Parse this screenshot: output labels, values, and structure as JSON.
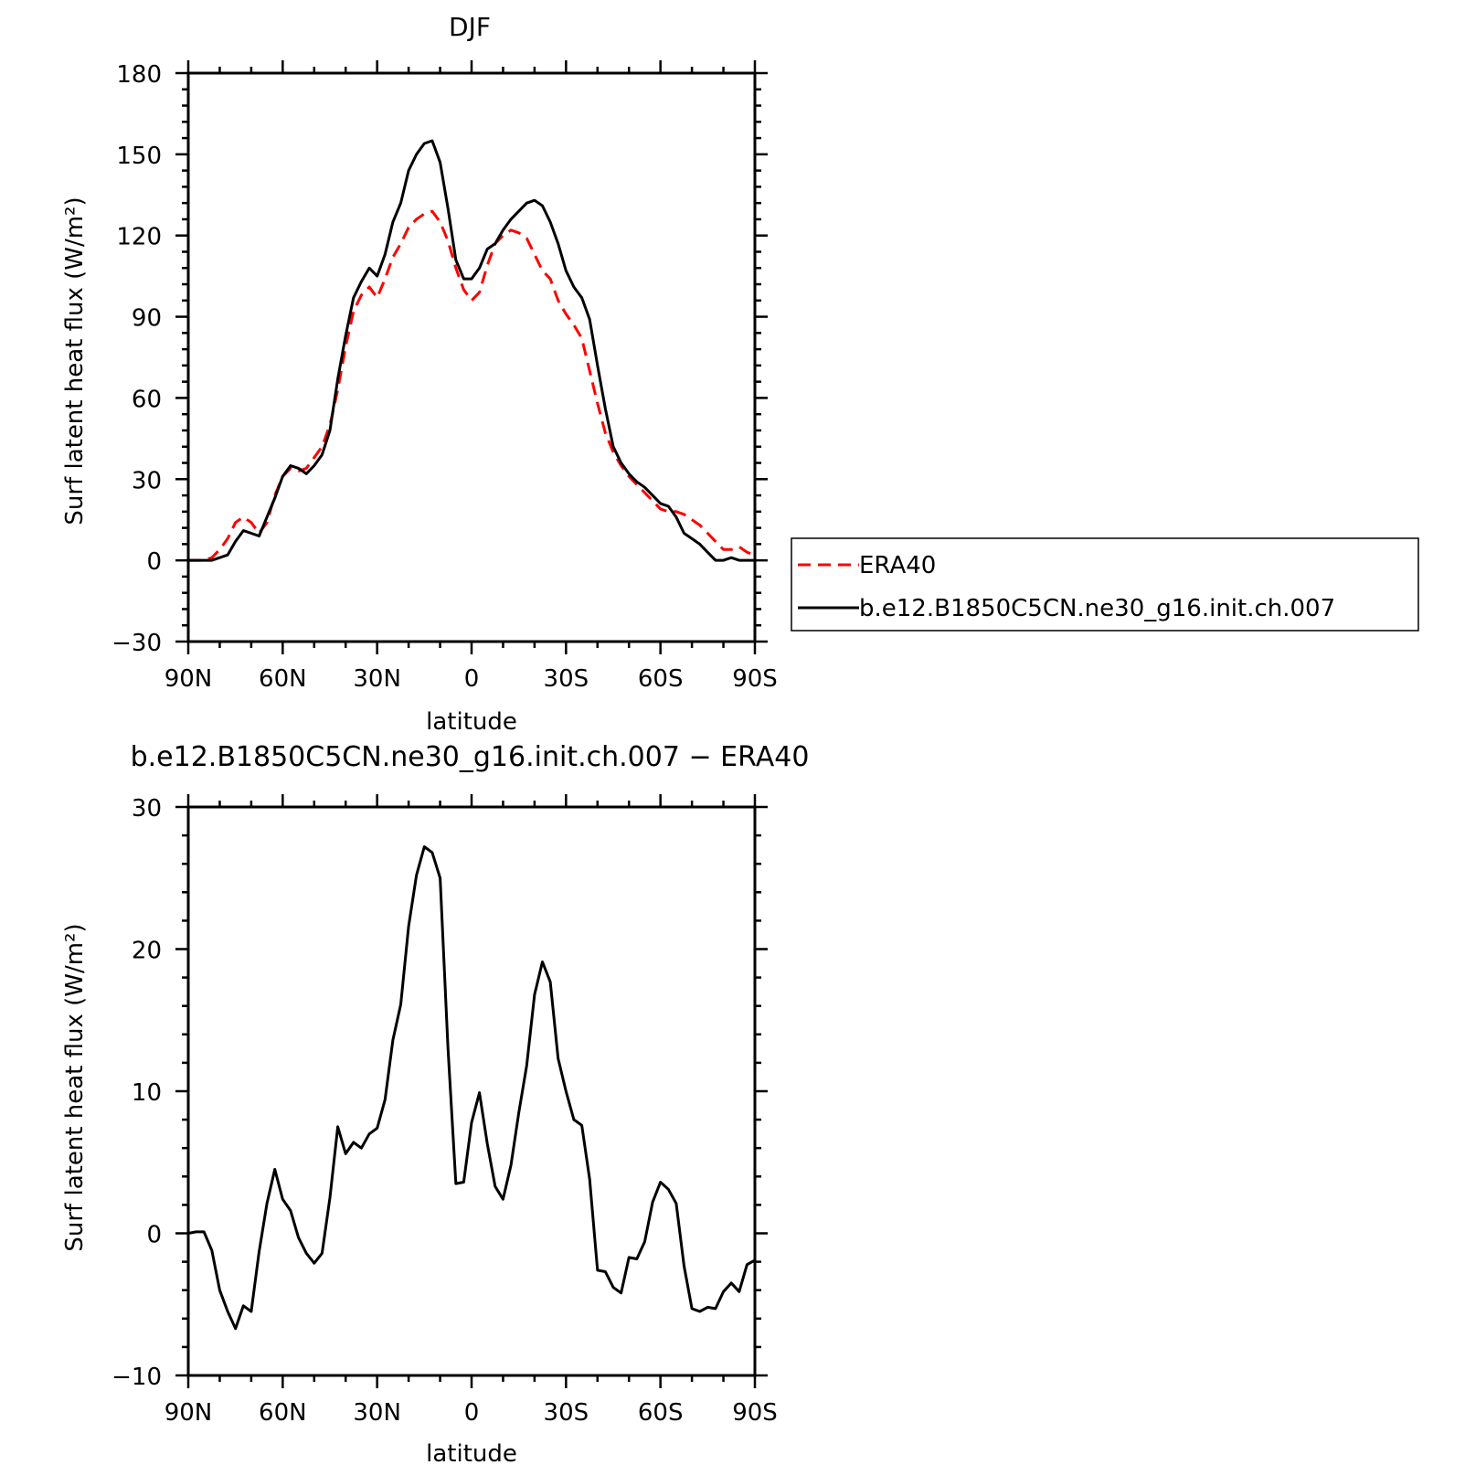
{
  "chart_data": [
    {
      "type": "line",
      "title": "DJF",
      "xlabel": "latitude",
      "ylabel": "Surf latent heat flux (W/m²)",
      "xlim": [
        90,
        -90
      ],
      "ylim": [
        -30,
        180
      ],
      "xticks": [
        90,
        60,
        30,
        0,
        -30,
        -60,
        -90
      ],
      "xtick_labels": [
        "90N",
        "60N",
        "30N",
        "0",
        "30S",
        "60S",
        "90S"
      ],
      "yticks": [
        -30,
        0,
        30,
        60,
        90,
        120,
        150,
        180
      ],
      "ytick_labels": [
        "−30",
        "0",
        "30",
        "60",
        "90",
        "120",
        "150",
        "180"
      ],
      "legend_position": "right",
      "series": [
        {
          "name": "ERA40",
          "color": "#ff0000",
          "dash": "dashed",
          "x": [
            90,
            87.5,
            85,
            82.5,
            80,
            77.5,
            75,
            72.5,
            70,
            67.5,
            65,
            62.5,
            60,
            57.5,
            55,
            52.5,
            50,
            47.5,
            45,
            42.5,
            40,
            37.5,
            35,
            32.5,
            30,
            27.5,
            25,
            22.5,
            20,
            17.5,
            15,
            12.5,
            10,
            7.5,
            5,
            2.5,
            0,
            -2.5,
            -5,
            -7.5,
            -10,
            -12.5,
            -15,
            -17.5,
            -20,
            -22.5,
            -25,
            -27.5,
            -30,
            -32.5,
            -35,
            -37.5,
            -40,
            -42.5,
            -45,
            -47.5,
            -50,
            -52.5,
            -55,
            -57.5,
            -60,
            -62.5,
            -65,
            -67.5,
            -70,
            -72.5,
            -75,
            -77.5,
            -80,
            -82.5,
            -85,
            -87.5,
            -90
          ],
          "y": [
            0,
            0,
            0,
            1,
            4,
            8,
            14,
            16,
            14,
            10,
            14,
            24,
            31,
            34,
            33,
            34,
            38,
            42,
            50,
            63,
            79,
            92,
            98,
            101,
            97,
            104,
            112,
            117,
            123,
            126,
            128,
            129,
            125,
            118,
            108,
            100,
            96,
            99,
            109,
            117,
            120,
            122,
            121,
            119,
            113,
            107,
            104,
            96,
            91,
            87,
            82,
            70,
            58,
            47,
            40,
            35,
            31,
            28,
            25,
            22,
            19,
            18,
            18,
            17,
            15,
            13,
            10,
            7,
            4,
            4,
            5,
            3,
            2
          ]
        },
        {
          "name": "b.e12.B1850C5CN.ne30_g16.init.ch.007",
          "color": "#000000",
          "dash": "solid",
          "x": [
            90,
            87.5,
            85,
            82.5,
            80,
            77.5,
            75,
            72.5,
            70,
            67.5,
            65,
            62.5,
            60,
            57.5,
            55,
            52.5,
            50,
            47.5,
            45,
            42.5,
            40,
            37.5,
            35,
            32.5,
            30,
            27.5,
            25,
            22.5,
            20,
            17.5,
            15,
            12.5,
            10,
            7.5,
            5,
            2.5,
            0,
            -2.5,
            -5,
            -7.5,
            -10,
            -12.5,
            -15,
            -17.5,
            -20,
            -22.5,
            -25,
            -27.5,
            -30,
            -32.5,
            -35,
            -37.5,
            -40,
            -42.5,
            -45,
            -47.5,
            -50,
            -52.5,
            -55,
            -57.5,
            -60,
            -62.5,
            -65,
            -67.5,
            -70,
            -72.5,
            -75,
            -77.5,
            -80,
            -82.5,
            -85,
            -87.5,
            -90
          ],
          "y": [
            0,
            0,
            0,
            0,
            1,
            2,
            7,
            11,
            10,
            9,
            16,
            23,
            31,
            35,
            34,
            32,
            35,
            39,
            48,
            67,
            83,
            97,
            103,
            108,
            105,
            113,
            125,
            132,
            144,
            150,
            154,
            155,
            147,
            130,
            111,
            104,
            104,
            108,
            115,
            117,
            122,
            126,
            129,
            132,
            133,
            131,
            125,
            117,
            107,
            101,
            97,
            89,
            72,
            56,
            42,
            36,
            32,
            29,
            27,
            24,
            21,
            20,
            16,
            10,
            8,
            6,
            3,
            0,
            0,
            1,
            0,
            0,
            0
          ]
        }
      ]
    },
    {
      "type": "line",
      "title": "b.e12.B1850C5CN.ne30_g16.init.ch.007 − ERA40",
      "xlabel": "latitude",
      "ylabel": "Surf latent heat flux (W/m²)",
      "xlim": [
        90,
        -90
      ],
      "ylim": [
        -10,
        30
      ],
      "xticks": [
        90,
        60,
        30,
        0,
        -30,
        -60,
        -90
      ],
      "xtick_labels": [
        "90N",
        "60N",
        "30N",
        "0",
        "30S",
        "60S",
        "90S"
      ],
      "yticks": [
        -10,
        0,
        10,
        20,
        30
      ],
      "ytick_labels": [
        "−10",
        "0",
        "10",
        "20",
        "30"
      ],
      "series": [
        {
          "color": "#000000",
          "dash": "solid",
          "x": [
            90,
            87.5,
            85,
            82.5,
            80,
            77.5,
            75,
            72.5,
            70,
            67.5,
            65,
            62.5,
            60,
            57.5,
            55,
            52.5,
            50,
            47.5,
            45,
            42.5,
            40,
            37.5,
            35,
            32.5,
            30,
            27.5,
            25,
            22.5,
            20,
            17.5,
            15,
            12.5,
            10,
            7.5,
            5,
            2.5,
            0,
            -2.5,
            -5,
            -7.5,
            -10,
            -12.5,
            -15,
            -17.5,
            -20,
            -22.5,
            -25,
            -27.5,
            -30,
            -32.5,
            -35,
            -37.5,
            -40,
            -42.5,
            -45,
            -47.5,
            -50,
            -52.5,
            -55,
            -57.5,
            -60,
            -62.5,
            -65,
            -67.5,
            -70,
            -72.5,
            -75,
            -77.5,
            -80,
            -82.5,
            -85,
            -87.5,
            -90
          ],
          "y": [
            0,
            0.1,
            0.1,
            -1.2,
            -4,
            -5.5,
            -6.7,
            -5.1,
            -5.5,
            -1.3,
            2.1,
            4.5,
            2.4,
            1.6,
            -0.3,
            -1.4,
            -2.1,
            -1.4,
            2.5,
            7.5,
            5.6,
            6.4,
            6,
            7,
            7.4,
            9.4,
            13.6,
            16.1,
            21.6,
            25.2,
            27.2,
            26.8,
            25,
            13,
            3.5,
            3.6,
            7.8,
            9.9,
            6.3,
            3.3,
            2.4,
            4.8,
            8.5,
            11.8,
            16.8,
            19.1,
            17.7,
            12.3,
            10,
            8,
            7.6,
            3.8,
            -2.6,
            -2.7,
            -3.8,
            -4.2,
            -1.7,
            -1.8,
            -0.6,
            2.2,
            3.6,
            3.1,
            2.1,
            -2.3,
            -5.3,
            -5.5,
            -5.2,
            -5.3,
            -4.1,
            -3.5,
            -4.1,
            -2.2,
            -1.9
          ]
        }
      ]
    }
  ]
}
